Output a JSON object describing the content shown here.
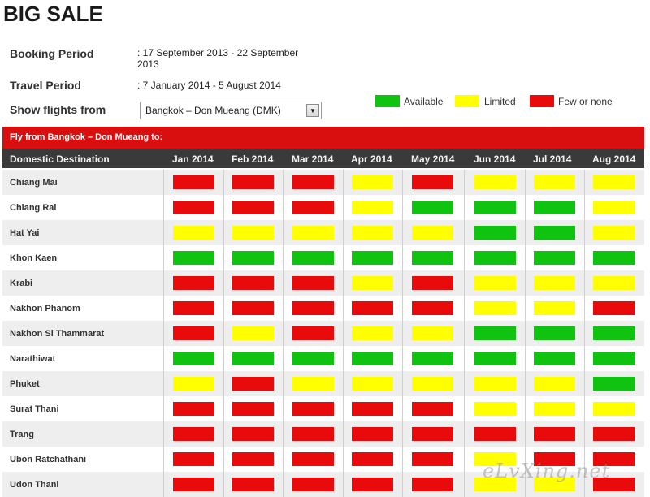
{
  "page": {
    "title": "BIG SALE"
  },
  "booking": {
    "booking_label": "Booking Period",
    "booking_value_line1": ": 17 September 2013 - 22 September",
    "booking_value_line2": "2013",
    "travel_label": "Travel Period",
    "travel_value": ": 7 January 2014 - 5 August 2014",
    "show_label": "Show flights from",
    "selected_origin": "Bangkok – Don Mueang (DMK)"
  },
  "legend": [
    {
      "label": "Available",
      "color": "#10c310"
    },
    {
      "label": "Limited",
      "color": "#ffff00"
    },
    {
      "label": "Few or none",
      "color": "#e90b0b"
    }
  ],
  "status_colors": {
    "G": "#10c310",
    "Y": "#ffff00",
    "R": "#e90b0b"
  },
  "table": {
    "banner": "Fly from Bangkok – Don Mueang to:",
    "header": "Domestic Destination",
    "months": [
      "Jan 2014",
      "Feb 2014",
      "Mar 2014",
      "Apr 2014",
      "May 2014",
      "Jun 2014",
      "Jul 2014",
      "Aug 2014"
    ],
    "rows": [
      {
        "name": "Chiang Mai",
        "status": [
          "R",
          "R",
          "R",
          "Y",
          "R",
          "Y",
          "Y",
          "Y"
        ]
      },
      {
        "name": "Chiang Rai",
        "status": [
          "R",
          "R",
          "R",
          "Y",
          "G",
          "G",
          "G",
          "Y"
        ]
      },
      {
        "name": "Hat Yai",
        "status": [
          "Y",
          "Y",
          "Y",
          "Y",
          "Y",
          "G",
          "G",
          "Y"
        ]
      },
      {
        "name": "Khon Kaen",
        "status": [
          "G",
          "G",
          "G",
          "G",
          "G",
          "G",
          "G",
          "G"
        ]
      },
      {
        "name": "Krabi",
        "status": [
          "R",
          "R",
          "R",
          "Y",
          "R",
          "Y",
          "Y",
          "Y"
        ]
      },
      {
        "name": "Nakhon Phanom",
        "status": [
          "R",
          "R",
          "R",
          "R",
          "R",
          "Y",
          "Y",
          "R"
        ]
      },
      {
        "name": "Nakhon Si Thammarat",
        "status": [
          "R",
          "Y",
          "R",
          "Y",
          "Y",
          "G",
          "G",
          "G"
        ]
      },
      {
        "name": "Narathiwat",
        "status": [
          "G",
          "G",
          "G",
          "G",
          "G",
          "G",
          "G",
          "G"
        ]
      },
      {
        "name": "Phuket",
        "status": [
          "Y",
          "R",
          "Y",
          "Y",
          "Y",
          "Y",
          "Y",
          "G"
        ]
      },
      {
        "name": "Surat Thani",
        "status": [
          "R",
          "R",
          "R",
          "R",
          "R",
          "Y",
          "Y",
          "Y"
        ]
      },
      {
        "name": "Trang",
        "status": [
          "R",
          "R",
          "R",
          "R",
          "R",
          "R",
          "R",
          "R"
        ]
      },
      {
        "name": "Ubon Ratchathani",
        "status": [
          "R",
          "R",
          "R",
          "R",
          "R",
          "Y",
          "R",
          "R"
        ]
      },
      {
        "name": "Udon Thani",
        "status": [
          "R",
          "R",
          "R",
          "R",
          "R",
          "Y",
          "Y",
          "R"
        ]
      }
    ]
  },
  "watermark": "eLvXing.net"
}
